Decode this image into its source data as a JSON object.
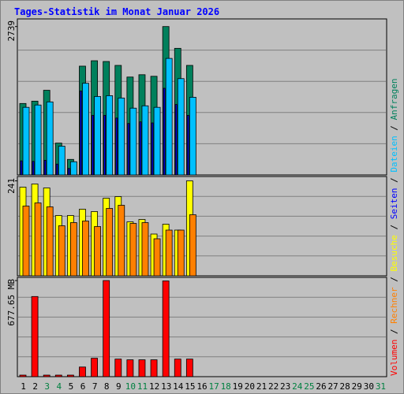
{
  "chart_data": {
    "type": "bar",
    "title": "Tages-Statistik im Monat Januar 2026",
    "categories": [
      "1",
      "2",
      "3",
      "4",
      "5",
      "6",
      "7",
      "8",
      "9",
      "10",
      "11",
      "12",
      "13",
      "14",
      "15",
      "16",
      "17",
      "18",
      "19",
      "20",
      "21",
      "22",
      "23",
      "24",
      "25",
      "26",
      "27",
      "28",
      "29",
      "30",
      "31"
    ],
    "weekend": [
      "3",
      "4",
      "10",
      "11",
      "17",
      "18",
      "24",
      "25",
      "31"
    ],
    "weekend_color": "#008040",
    "legend_separator": " / ",
    "panels": [
      {
        "ylim": [
          0,
          2880
        ],
        "yticks": [
          2739
        ],
        "series": [
          {
            "name": "Anfragen",
            "color": "#00805c",
            "values": [
              1319,
              1362,
              1563,
              588,
              287,
              2008,
              2108,
              2094,
              2022,
              1807,
              1850,
              1821,
              2739,
              2337,
              2022,
              0,
              0,
              0,
              0,
              0,
              0,
              0,
              0,
              0,
              0,
              0,
              0,
              0,
              0,
              0,
              0
            ]
          },
          {
            "name": "Dateien",
            "color": "#00c0ff",
            "values": [
              1248,
              1291,
              1348,
              531,
              244,
              1692,
              1448,
              1463,
              1420,
              1233,
              1276,
              1248,
              2151,
              1778,
              1434,
              0,
              0,
              0,
              0,
              0,
              0,
              0,
              0,
              0,
              0,
              0,
              0,
              0,
              0,
              0,
              0
            ]
          },
          {
            "name": "Seiten",
            "color": "#0000ff",
            "values": [
              260,
              250,
              270,
              200,
              120,
              1550,
              1100,
              1100,
              1050,
              950,
              980,
              960,
              1600,
              1300,
              1100,
              0,
              0,
              0,
              0,
              0,
              0,
              0,
              0,
              0,
              0,
              0,
              0,
              0,
              0,
              0,
              0
            ]
          }
        ]
      },
      {
        "ylim": [
          0,
          252
        ],
        "yticks": [
          241
        ],
        "series": [
          {
            "name": "Besuche",
            "color": "#ffff00",
            "values": [
              225,
              233,
              223,
              153,
              153,
              169,
              163,
              197,
              201,
              137,
              143,
              106,
              131,
              116,
              241,
              0,
              0,
              0,
              0,
              0,
              0,
              0,
              0,
              0,
              0,
              0,
              0,
              0,
              0,
              0,
              0
            ]
          },
          {
            "name": "Rechner",
            "color": "#ff8000",
            "values": [
              177,
              185,
              175,
              127,
              135,
              139,
              125,
              171,
              179,
              133,
              135,
              94,
              116,
              116,
              155,
              0,
              0,
              0,
              0,
              0,
              0,
              0,
              0,
              0,
              0,
              0,
              0,
              0,
              0,
              0,
              0
            ]
          }
        ]
      },
      {
        "ylim": [
          0,
          700
        ],
        "yticks": [
          {
            "value": 677.65,
            "label": "677.65 MB"
          }
        ],
        "series": [
          {
            "name": "Volumen",
            "color": "#ff0000",
            "values": [
              11,
              565,
              11,
              11,
              11,
              68,
              130,
              677.65,
              124,
              119,
              119,
              119,
              675,
              124,
              124,
              0,
              0,
              0,
              0,
              0,
              0,
              0,
              0,
              0,
              0,
              0,
              0,
              0,
              0,
              0,
              0
            ]
          }
        ]
      }
    ]
  }
}
